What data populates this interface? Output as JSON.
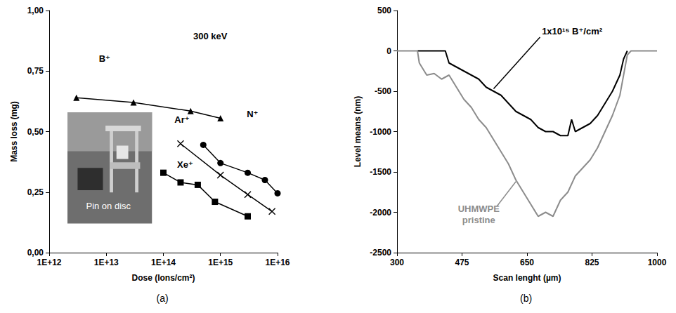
{
  "chart_data": [
    {
      "type": "line",
      "caption": "(a)",
      "annotation": "300 keV",
      "inset_label": "Pin on disc",
      "x_label": "Dose (Ions/cm²)",
      "y_label": "Mass loss (mg)",
      "log": "x",
      "grid": false,
      "xlim": [
        1000000000000.0,
        1e+16
      ],
      "xticks": [
        {
          "value": 1000000000000.0,
          "label": "1E+12"
        },
        {
          "value": 10000000000000.0,
          "label": "1E+13"
        },
        {
          "value": 100000000000000.0,
          "label": "1E+14"
        },
        {
          "value": 1000000000000000.0,
          "label": "1E+15"
        },
        {
          "value": 1e+16,
          "label": "1E+16"
        }
      ],
      "ylim": [
        0,
        1
      ],
      "yticks": [
        {
          "value": 0,
          "label": "0,00"
        },
        {
          "value": 0.25,
          "label": "0,25"
        },
        {
          "value": 0.5,
          "label": "0,50"
        },
        {
          "value": 0.75,
          "label": "0,75"
        },
        {
          "value": 1,
          "label": "1,00"
        }
      ],
      "series": [
        {
          "name": "B⁺",
          "color": "#000000",
          "marker": "triangle",
          "line_style": "solid",
          "x": [
            3000000000000.0,
            30000000000000.0,
            300000000000000.0,
            1000000000000000.0
          ],
          "values": [
            0.64,
            0.62,
            0.585,
            0.555
          ]
        },
        {
          "name": "Ar⁺",
          "color": "#000000",
          "marker": "x",
          "line_style": "solid",
          "x": [
            200000000000000.0,
            1000000000000000.0,
            3000000000000000.0,
            8000000000000000.0
          ],
          "values": [
            0.45,
            0.32,
            0.24,
            0.17
          ]
        },
        {
          "name": "N⁺",
          "color": "#000000",
          "marker": "circle",
          "line_style": "solid",
          "x": [
            500000000000000.0,
            1000000000000000.0,
            3000000000000000.0,
            6000000000000000.0,
            1e+16
          ],
          "values": [
            0.445,
            0.37,
            0.33,
            0.3,
            0.245
          ]
        },
        {
          "name": "Xe⁺",
          "color": "#000000",
          "marker": "square",
          "line_style": "solid",
          "x": [
            100000000000000.0,
            200000000000000.0,
            400000000000000.0,
            800000000000000.0,
            3000000000000000.0
          ],
          "values": [
            0.33,
            0.29,
            0.28,
            0.21,
            0.15
          ]
        }
      ]
    },
    {
      "type": "line",
      "caption": "(b)",
      "x_label": "Scan lenght (µm)",
      "y_label": "Level means (nm)",
      "grid": false,
      "xlim": [
        300,
        1000
      ],
      "xticks": [
        300,
        475,
        650,
        825,
        1000
      ],
      "ylim": [
        -2500,
        500
      ],
      "yticks": [
        -2500,
        -2000,
        -1500,
        -1000,
        -500,
        0,
        500
      ],
      "series": [
        {
          "name": "1x10¹⁵ B⁺/cm²",
          "color": "#000000",
          "marker": "none",
          "line_style": "solid",
          "x": [
            355,
            380,
            400,
            430,
            440,
            460,
            480,
            500,
            520,
            540,
            560,
            580,
            600,
            620,
            640,
            660,
            680,
            700,
            720,
            740,
            760,
            770,
            780,
            800,
            820,
            840,
            860,
            880,
            900,
            910,
            920
          ],
          "values": [
            0,
            0,
            0,
            0,
            -150,
            -200,
            -250,
            -300,
            -350,
            -450,
            -500,
            -550,
            -650,
            -750,
            -800,
            -850,
            -950,
            -1000,
            -1000,
            -1050,
            -1050,
            -850,
            -1000,
            -950,
            -900,
            -800,
            -650,
            -500,
            -300,
            -100,
            0
          ]
        },
        {
          "name": "UHMWPE pristine",
          "color": "#8c8c8c",
          "marker": "none",
          "line_style": "solid",
          "x": [
            300,
            355,
            360,
            380,
            400,
            420,
            440,
            460,
            480,
            500,
            520,
            540,
            560,
            580,
            600,
            620,
            640,
            660,
            680,
            700,
            720,
            740,
            760,
            780,
            800,
            820,
            840,
            860,
            880,
            900,
            910,
            920,
            930,
            1000
          ],
          "values": [
            0,
            0,
            -150,
            -300,
            -280,
            -350,
            -300,
            -450,
            -600,
            -700,
            -850,
            -950,
            -1100,
            -1250,
            -1400,
            -1600,
            -1750,
            -1900,
            -2050,
            -2000,
            -2050,
            -1850,
            -1750,
            -1550,
            -1450,
            -1350,
            -1200,
            -1000,
            -800,
            -550,
            -300,
            -50,
            0,
            0
          ]
        }
      ]
    }
  ]
}
